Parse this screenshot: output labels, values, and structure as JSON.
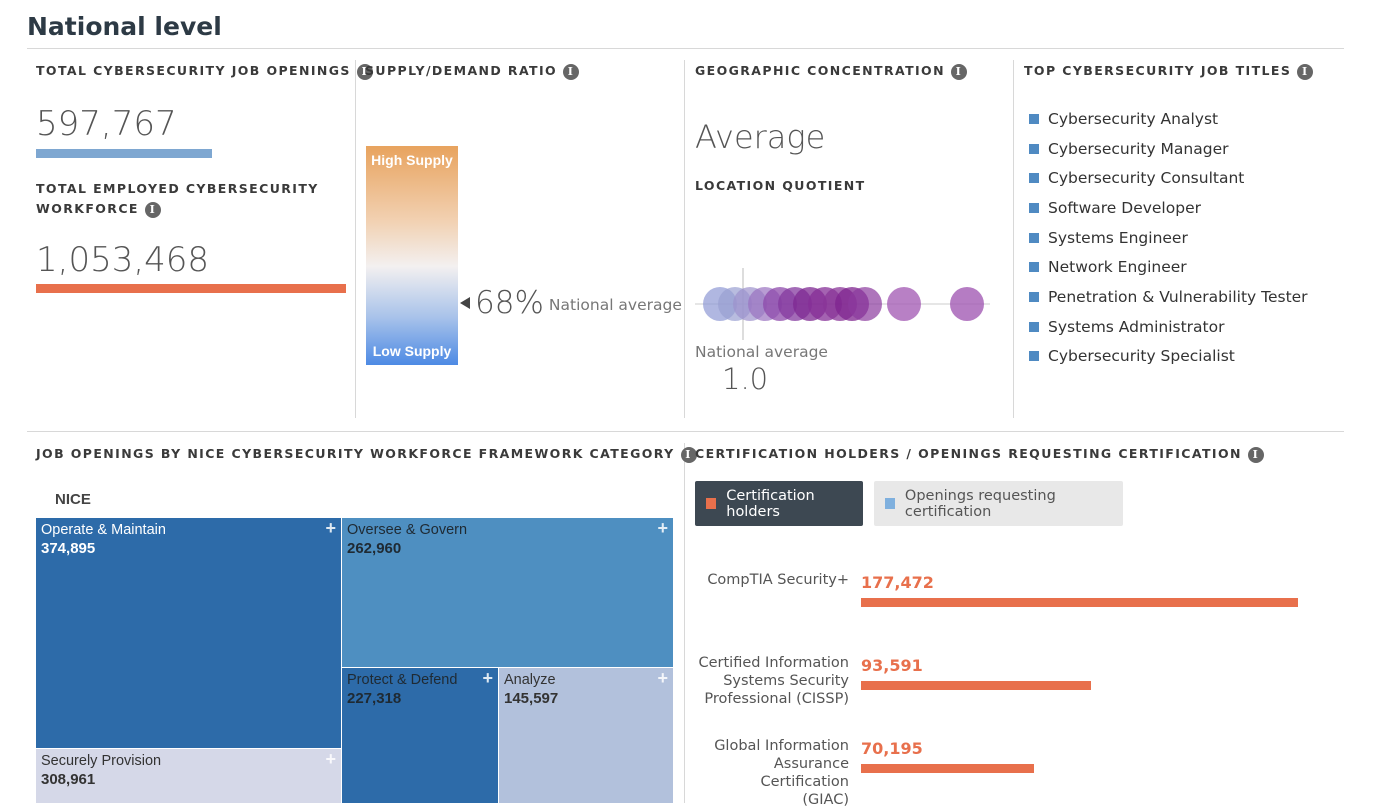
{
  "page_title": "National level",
  "colors": {
    "orange": "#e8704c",
    "blue_bar": "#7ea7d1",
    "dark_blue": "#2d6ba9",
    "legend_blue": "#7fb0de"
  },
  "job_openings": {
    "label": "TOTAL CYBERSECURITY JOB OPENINGS",
    "value": "597,767"
  },
  "workforce": {
    "label_line1": "TOTAL EMPLOYED CYBERSECURITY",
    "label_line2": "WORKFORCE",
    "value": "1,053,468"
  },
  "supply_demand": {
    "label": "SUPPLY/DEMAND RATIO",
    "high": "High Supply",
    "low": "Low Supply",
    "value": "68%",
    "caption": "National average",
    "marker_fraction": 0.68
  },
  "geo": {
    "label": "GEOGRAPHIC CONCENTRATION",
    "value": "Average",
    "lq_label": "LOCATION QUOTIENT",
    "avg_caption": "National average",
    "avg_value": "1.0"
  },
  "top_titles": {
    "label": "TOP CYBERSECURITY JOB TITLES",
    "items": [
      "Cybersecurity Analyst",
      "Cybersecurity Manager",
      "Cybersecurity Consultant",
      "Software Developer",
      "Systems Engineer",
      "Network Engineer",
      "Penetration & Vulnerability Tester",
      "Systems Administrator",
      "Cybersecurity Specialist"
    ]
  },
  "nice": {
    "label": "JOB OPENINGS BY NICE CYBERSECURITY WORKFORCE FRAMEWORK CATEGORY",
    "subtitle": "NICE",
    "cells": [
      {
        "name": "Operate & Maintain",
        "value": "374,895"
      },
      {
        "name": "Oversee & Govern",
        "value": "262,960"
      },
      {
        "name": "Protect & Defend",
        "value": "227,318"
      },
      {
        "name": "Analyze",
        "value": "145,597"
      },
      {
        "name": "Securely Provision",
        "value": "308,961"
      }
    ],
    "expand_symbol": "+"
  },
  "certs": {
    "label": "CERTIFICATION HOLDERS / OPENINGS REQUESTING CERTIFICATION",
    "btn_holders": "Certification holders",
    "btn_openings": "Openings requesting certification",
    "items": [
      {
        "l1": "",
        "l2": "CompTIA Security+",
        "l3": "",
        "value": "177,472",
        "amount": 177472
      },
      {
        "l1": "Certified Information",
        "l2": "Systems Security",
        "l3": "Professional (CISSP)",
        "value": "93,591",
        "amount": 93591
      },
      {
        "l1": "Global Information",
        "l2": "Assurance Certification",
        "l3": "(GIAC)",
        "value": "70,195",
        "amount": 70195
      }
    ]
  }
}
